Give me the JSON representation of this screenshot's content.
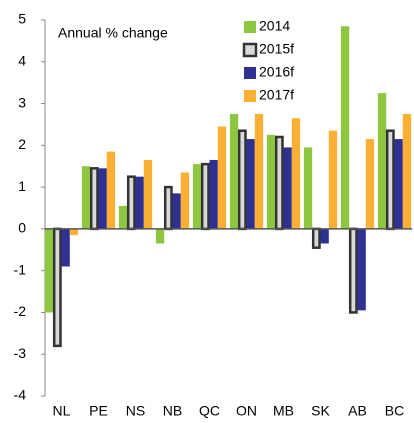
{
  "chart_data": {
    "type": "bar",
    "title": "Annual % change",
    "categories": [
      "NL",
      "PE",
      "NS",
      "NB",
      "QC",
      "ON",
      "MB",
      "SK",
      "AB",
      "BC"
    ],
    "series": [
      {
        "name": "2014",
        "color": "#8dc63f",
        "values": [
          -2.0,
          1.5,
          0.55,
          -0.35,
          1.55,
          2.75,
          2.25,
          1.95,
          4.85,
          3.25
        ]
      },
      {
        "name": "2015f",
        "color": "#d9d9d9",
        "values": [
          -2.8,
          1.45,
          1.25,
          1.0,
          1.55,
          2.35,
          2.2,
          -0.45,
          -2.0,
          2.35
        ]
      },
      {
        "name": "2016f",
        "color": "#2e3192",
        "values": [
          -0.9,
          1.45,
          1.25,
          0.85,
          1.65,
          2.15,
          1.95,
          -0.35,
          -1.95,
          2.15
        ]
      },
      {
        "name": "2017f",
        "color": "#fbb034",
        "values": [
          -0.15,
          1.85,
          1.65,
          1.35,
          2.45,
          2.75,
          2.65,
          2.35,
          2.15,
          2.75
        ]
      }
    ],
    "ylim": [
      -4,
      5
    ],
    "yticks": [
      -4,
      -3,
      -2,
      -1,
      0,
      1,
      2,
      3,
      4,
      5
    ],
    "grid": false
  }
}
